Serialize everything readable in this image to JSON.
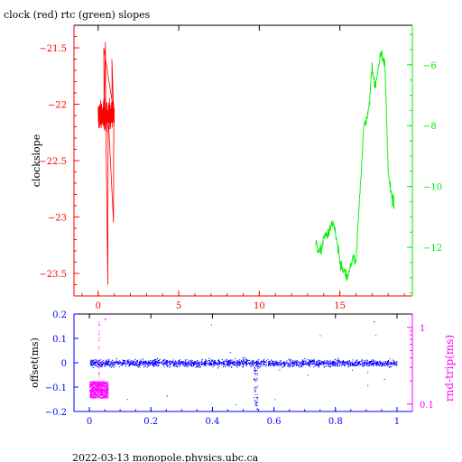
{
  "page": {
    "title": "clock (red) rtc (green) slopes",
    "footer": "2022-03-13 monopole.physics.ubc.ca"
  },
  "colors": {
    "red": "#ff0000",
    "green": "#00ee00",
    "blue": "#0000ff",
    "magenta": "#ff00ff",
    "black": "#000000"
  },
  "chart_data": [
    {
      "type": "line",
      "title": "clock (red) rtc (green) slopes",
      "ylabel": "clockslope",
      "xlim": [
        -1.5,
        19.5
      ],
      "ylim": [
        -23.7,
        -21.3
      ],
      "x_ticks": [
        0,
        5,
        10,
        15
      ],
      "y_ticks": [
        -21.5,
        -22,
        -22.5,
        -23,
        -23.5
      ],
      "y2lim": [
        -13.6,
        -4.7
      ],
      "y2_ticks": [
        -6,
        -8,
        -10,
        -12
      ],
      "series": [
        {
          "name": "clock",
          "color": "red",
          "axis": "left",
          "x_range": [
            0,
            1.0
          ],
          "center": -22.1,
          "typical_range": [
            -22.4,
            -21.85
          ],
          "extremes": [
            {
              "x": 0.35,
              "y": -21.5
            },
            {
              "x": 0.45,
              "y": -21.45
            },
            {
              "x": 0.6,
              "y": -23.6
            },
            {
              "x": 0.95,
              "y": -23.05
            },
            {
              "x": 0.85,
              "y": -21.6
            }
          ]
        },
        {
          "name": "rtc",
          "color": "green",
          "axis": "right",
          "x": [
            13.5,
            13.8,
            14.0,
            14.3,
            14.6,
            14.8,
            15.0,
            15.2,
            15.5,
            15.8,
            16.0,
            16.2,
            16.5,
            16.8,
            17.0,
            17.2,
            17.5,
            17.8,
            18.0,
            18.2,
            18.4
          ],
          "y": [
            -11.9,
            -12.2,
            -11.7,
            -11.5,
            -11.2,
            -11.8,
            -12.5,
            -12.8,
            -13.0,
            -12.3,
            -12.6,
            -10.5,
            -8.0,
            -7.5,
            -6.0,
            -6.8,
            -5.6,
            -6.0,
            -9.5,
            -10.3,
            -10.7
          ]
        }
      ]
    },
    {
      "type": "scatter",
      "ylabel": "offset(ms)",
      "y2label": "rnd-trip(ms)",
      "xlim": [
        -0.05,
        1.05
      ],
      "ylim": [
        -0.2,
        0.2
      ],
      "x_ticks": [
        0,
        0.2,
        0.4,
        0.6,
        0.8,
        1
      ],
      "y_ticks": [
        0.2,
        0.1,
        0,
        -0.1,
        -0.2
      ],
      "y2_scale": "log",
      "y2lim": [
        0.08,
        1.5
      ],
      "y2_ticks": [
        1,
        0.1
      ],
      "series": [
        {
          "name": "offset",
          "color": "blue",
          "axis": "left",
          "x_range": [
            0,
            1
          ],
          "center": 0.0,
          "spread": 0.015,
          "dip": {
            "x": 0.54,
            "y_min": -0.2
          }
        },
        {
          "name": "rnd-trip",
          "color": "magenta",
          "axis": "right",
          "x_range": [
            0,
            0.06
          ],
          "typical_range": [
            0.12,
            0.2
          ],
          "extremes": [
            {
              "x": 0.03,
              "y": 1.1
            },
            {
              "x": 0.05,
              "y": 1.3
            }
          ]
        }
      ]
    }
  ]
}
